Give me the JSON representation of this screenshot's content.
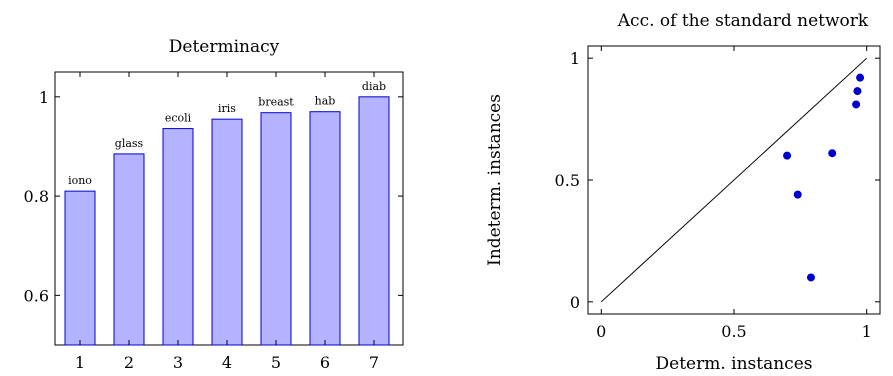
{
  "chart_data": [
    {
      "type": "bar",
      "title": "Determinacy",
      "xlabel": "",
      "ylabel": "",
      "categories": [
        "1",
        "2",
        "3",
        "4",
        "5",
        "6",
        "7"
      ],
      "values": [
        0.81,
        0.885,
        0.936,
        0.955,
        0.968,
        0.97,
        1.0
      ],
      "data_labels": [
        "iono",
        "glass",
        "ecoli",
        "iris",
        "breast",
        "hab",
        "diab"
      ],
      "ylim": [
        0.5,
        1.05
      ],
      "yticks": [
        0.6,
        0.8,
        1
      ],
      "ytick_labels": [
        "0.6",
        "0.8",
        "1"
      ],
      "grid": false,
      "colors": {
        "bar_fill": "#b3b3ff",
        "bar_stroke": "#0000cc"
      }
    },
    {
      "type": "scatter",
      "title": "Acc. of the standard network",
      "xlabel": "Determ. instances",
      "ylabel": "Indeterm. instances",
      "xlim": [
        -0.05,
        1.05
      ],
      "ylim": [
        -0.05,
        1.05
      ],
      "xticks": [
        0,
        0.5,
        1
      ],
      "xtick_labels": [
        "0",
        "0.5",
        "1"
      ],
      "yticks": [
        0,
        0.5,
        1
      ],
      "ytick_labels": [
        "0",
        "0.5",
        "1"
      ],
      "points": [
        {
          "x": 0.7,
          "y": 0.6
        },
        {
          "x": 0.74,
          "y": 0.44
        },
        {
          "x": 0.79,
          "y": 0.1
        },
        {
          "x": 0.87,
          "y": 0.61
        },
        {
          "x": 0.96,
          "y": 0.81
        },
        {
          "x": 0.965,
          "y": 0.865
        },
        {
          "x": 0.975,
          "y": 0.92
        }
      ],
      "reference_line": {
        "from": [
          0,
          0
        ],
        "to": [
          1,
          1
        ]
      },
      "grid": false,
      "colors": {
        "marker": "#0000cc",
        "line": "#000000"
      }
    }
  ]
}
